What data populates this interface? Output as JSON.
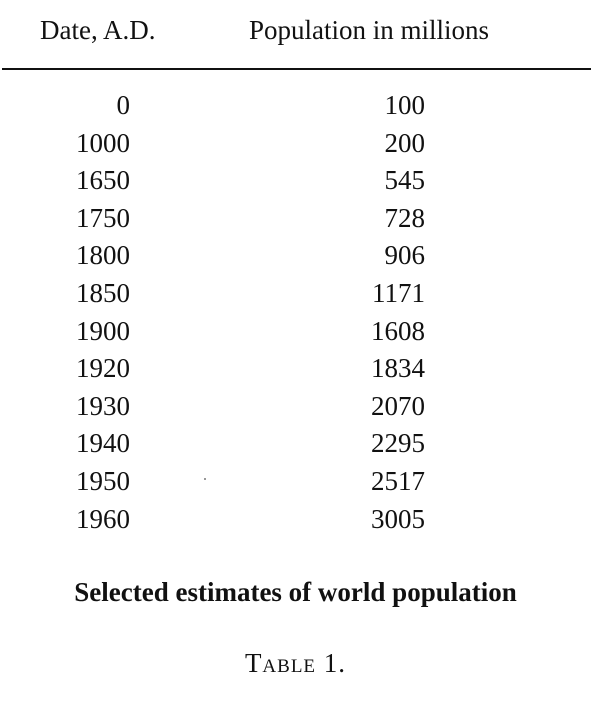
{
  "table": {
    "headers": {
      "date": "Date, A.D.",
      "population": "Population in millions"
    },
    "rows": [
      {
        "date": "0",
        "population": "100"
      },
      {
        "date": "1000",
        "population": "200"
      },
      {
        "date": "1650",
        "population": "545"
      },
      {
        "date": "1750",
        "population": "728"
      },
      {
        "date": "1800",
        "population": "906"
      },
      {
        "date": "1850",
        "population": "1171"
      },
      {
        "date": "1900",
        "population": "1608"
      },
      {
        "date": "1920",
        "population": "1834"
      },
      {
        "date": "1930",
        "population": "2070"
      },
      {
        "date": "1940",
        "population": "2295"
      },
      {
        "date": "1950",
        "population": "2517"
      },
      {
        "date": "1960",
        "population": "3005"
      }
    ],
    "caption": "Selected estimates of world population",
    "label": "Table 1."
  }
}
